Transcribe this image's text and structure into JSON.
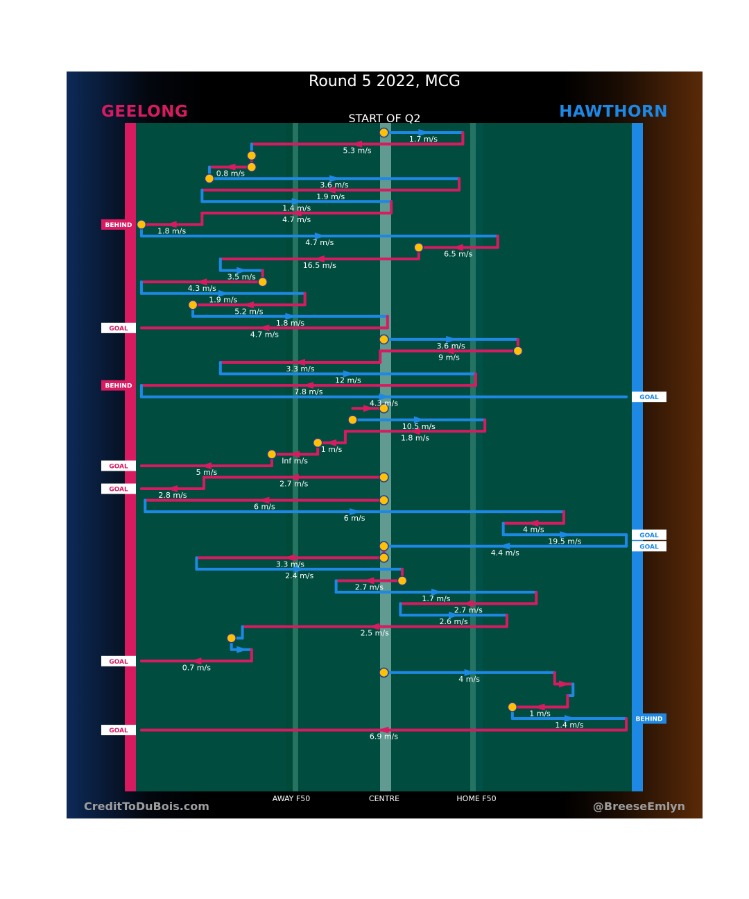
{
  "title": "Round 5 2022, MCG",
  "subtitle": "START OF Q2",
  "home_team": "GEELONG",
  "away_team": "HAWTHORN",
  "credit_left": "CreditToDuBois.com",
  "credit_right": "@BreeseEmlyn",
  "colors": {
    "geelong": "#d81b60",
    "hawthorn": "#1e88e5",
    "field": "#004d40",
    "stop": "#ffc107"
  },
  "chart_data": {
    "type": "line",
    "x_ticks": [
      {
        "label": "AWAY F50",
        "x": -50
      },
      {
        "label": "CENTRE",
        "x": 0
      },
      {
        "label": "HOME F50",
        "x": 50
      }
    ],
    "x_range": [
      -135,
      135
    ],
    "segments": [
      {
        "team": "hawthorn",
        "speed": "1.7 m/s",
        "x_from": 0,
        "x_to": 43,
        "start_marker": true
      },
      {
        "team": "geelong",
        "speed": "5.3 m/s",
        "x_from": 43,
        "x_to": -72
      },
      {
        "team": "hawthorn",
        "speed": "",
        "x_from": -72,
        "x_to": -72,
        "end_marker": true
      },
      {
        "team": "geelong",
        "speed": "0.8 m/s",
        "x_from": -72,
        "x_to": -95,
        "start_marker": true
      },
      {
        "team": "hawthorn",
        "speed": "3.6 m/s",
        "x_from": -95,
        "x_to": 41,
        "start_marker": true
      },
      {
        "team": "geelong",
        "speed": "1.9 m/s",
        "x_from": 41,
        "x_to": -99
      },
      {
        "team": "hawthorn",
        "speed": "1.4 m/s",
        "x_from": -99,
        "x_to": 4
      },
      {
        "team": "geelong",
        "speed": "4.7 m/s",
        "x_from": 4,
        "x_to": -99
      },
      {
        "team": "geelong",
        "speed": "1.8 m/s",
        "x_from": -99,
        "x_to": -132,
        "end_marker": true,
        "end_tag": "BEHIND"
      },
      {
        "team": "hawthorn",
        "speed": "4.7 m/s",
        "x_from": -132,
        "x_to": 62
      },
      {
        "team": "geelong",
        "speed": "6.5 m/s",
        "x_from": 62,
        "x_to": 19,
        "end_marker": true
      },
      {
        "team": "geelong",
        "speed": "16.5 m/s",
        "x_from": 19,
        "x_to": -89
      },
      {
        "team": "hawthorn",
        "speed": "3.5 m/s",
        "x_from": -89,
        "x_to": -66
      },
      {
        "team": "geelong",
        "speed": "4.3 m/s",
        "x_from": -66,
        "x_to": -132,
        "start_marker": true
      },
      {
        "team": "hawthorn",
        "speed": "1.9 m/s",
        "x_from": -132,
        "x_to": -43
      },
      {
        "team": "geelong",
        "speed": "5.2 m/s",
        "x_from": -43,
        "x_to": -104,
        "end_marker": true
      },
      {
        "team": "hawthorn",
        "speed": "1.8 m/s",
        "x_from": -104,
        "x_to": 2
      },
      {
        "team": "geelong",
        "speed": "4.7 m/s",
        "x_from": 2,
        "x_to": -132,
        "end_tag": "GOAL"
      },
      {
        "team": "hawthorn",
        "speed": "3.6 m/s",
        "x_from": 0,
        "x_to": 73,
        "start_marker": true
      },
      {
        "team": "geelong",
        "speed": "9 m/s",
        "x_from": 73,
        "x_to": -2,
        "start_marker": true
      },
      {
        "team": "geelong",
        "speed": "3.3 m/s",
        "x_from": -2,
        "x_to": -89
      },
      {
        "team": "hawthorn",
        "speed": "12 m/s",
        "x_from": -89,
        "x_to": 50
      },
      {
        "team": "geelong",
        "speed": "7.8 m/s",
        "x_from": 50,
        "x_to": -132,
        "end_tag": "BEHIND"
      },
      {
        "team": "hawthorn",
        "speed": "4.3 m/s",
        "x_from": -132,
        "x_to": 132,
        "end_tag": "GOAL"
      },
      {
        "team": "geelong",
        "speed": "",
        "x_from": -17,
        "x_to": 0,
        "end_marker": true
      },
      {
        "team": "hawthorn",
        "speed": "10.5 m/s",
        "x_from": -17,
        "x_to": 55,
        "start_marker": true
      },
      {
        "team": "geelong",
        "speed": "1.8 m/s",
        "x_from": 55,
        "x_to": -21
      },
      {
        "team": "geelong",
        "speed": "1 m/s",
        "x_from": -21,
        "x_to": -36,
        "end_marker": true
      },
      {
        "team": "geelong",
        "speed": "Inf m/s",
        "x_from": -36,
        "x_to": -61,
        "end_marker": true
      },
      {
        "team": "geelong",
        "speed": "5 m/s",
        "x_from": -61,
        "x_to": -132,
        "end_tag": "GOAL"
      },
      {
        "team": "geelong",
        "speed": "2.7 m/s",
        "x_from": 0,
        "x_to": -98,
        "start_marker": true
      },
      {
        "team": "geelong",
        "speed": "2.8 m/s",
        "x_from": -98,
        "x_to": -132,
        "end_tag": "GOAL"
      },
      {
        "team": "geelong",
        "speed": "6 m/s",
        "x_from": 0,
        "x_to": -130,
        "start_marker": true
      },
      {
        "team": "hawthorn",
        "speed": "6 m/s",
        "x_from": -130,
        "x_to": 98
      },
      {
        "team": "geelong",
        "speed": "4 m/s",
        "x_from": 98,
        "x_to": 65
      },
      {
        "team": "hawthorn",
        "speed": "19.5 m/s",
        "x_from": 65,
        "x_to": 132,
        "end_tag": "GOAL"
      },
      {
        "team": "hawthorn",
        "speed": "4.4 m/s",
        "x_from": 132,
        "x_to": 0,
        "end_marker": true,
        "start_tag": "GOAL"
      },
      {
        "team": "geelong",
        "speed": "3.3 m/s",
        "x_from": 0,
        "x_to": -102,
        "start_marker": true
      },
      {
        "team": "hawthorn",
        "speed": "2.4 m/s",
        "x_from": -102,
        "x_to": 10
      },
      {
        "team": "geelong",
        "speed": "2.7 m/s",
        "x_from": 10,
        "x_to": -26,
        "start_marker": true
      },
      {
        "team": "hawthorn",
        "speed": "1.7 m/s",
        "x_from": -26,
        "x_to": 83
      },
      {
        "team": "geelong",
        "speed": "2.7 m/s",
        "x_from": 83,
        "x_to": 9
      },
      {
        "team": "hawthorn",
        "speed": "2.6 m/s",
        "x_from": 9,
        "x_to": 67
      },
      {
        "team": "geelong",
        "speed": "2.5 m/s",
        "x_from": 67,
        "x_to": -77
      },
      {
        "team": "hawthorn",
        "speed": "",
        "x_from": -77,
        "x_to": -83,
        "end_marker": true
      },
      {
        "team": "hawthorn",
        "speed": "",
        "x_from": -83,
        "x_to": -72
      },
      {
        "team": "geelong",
        "speed": "0.7 m/s",
        "x_from": -72,
        "x_to": -132,
        "end_tag": "GOAL"
      },
      {
        "team": "hawthorn",
        "speed": "4 m/s",
        "x_from": 0,
        "x_to": 93,
        "start_marker": true
      },
      {
        "team": "geelong",
        "speed": "",
        "x_from": 93,
        "x_to": 103
      },
      {
        "team": "hawthorn",
        "speed": "",
        "x_from": 103,
        "x_to": 100
      },
      {
        "team": "geelong",
        "speed": "1 m/s",
        "x_from": 100,
        "x_to": 70,
        "end_marker": true
      },
      {
        "team": "hawthorn",
        "speed": "1.4 m/s",
        "x_from": 70,
        "x_to": 132,
        "end_tag": "BEHIND"
      },
      {
        "team": "geelong",
        "speed": "6.9 m/s",
        "x_from": 132,
        "x_to": -132,
        "end_tag": "GOAL"
      }
    ]
  }
}
